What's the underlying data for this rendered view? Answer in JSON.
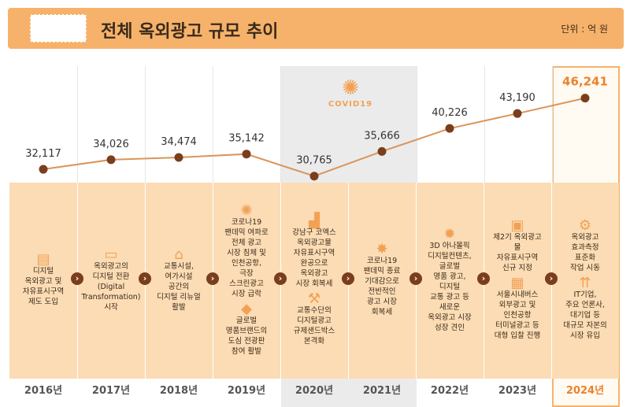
{
  "header": {
    "title": "전체 옥외광고 규모 추이",
    "unit": "단위 : 억 원"
  },
  "covid_label": "COVID19",
  "colors": {
    "accent": "#f6b26b",
    "line": "#d9955a",
    "point": "#7a3e1d",
    "highlight": "#e8832e"
  },
  "chart_data": {
    "type": "line",
    "title": "전체 옥외광고 규모 추이",
    "ylabel": "억 원",
    "categories": [
      "2016년",
      "2017년",
      "2018년",
      "2019년",
      "2020년",
      "2021년",
      "2022년",
      "2023년",
      "2024년"
    ],
    "values": [
      32117,
      34026,
      34474,
      35142,
      30765,
      35666,
      40226,
      43190,
      46241
    ],
    "value_labels": [
      "32,117",
      "34,026",
      "34,474",
      "35,142",
      "30,765",
      "35,666",
      "40,226",
      "43,190",
      "46,241"
    ],
    "ylim": [
      29000,
      48000
    ]
  },
  "descriptions": [
    [
      "디지털",
      "옥외광고 및",
      "자유표시구역",
      "제도 도입"
    ],
    [
      "옥외광고의",
      "디지털 전환",
      "(Digital",
      "Transformation)",
      "시작"
    ],
    [
      "교통시설,",
      "여가시설",
      "공간의",
      "디지털 리뉴얼",
      "활발"
    ],
    [
      "코로나19",
      "팬데믹 여파로",
      "전체 광고",
      "시장 침체 및",
      "인천공항,",
      "극장",
      "스크린광고",
      "시장 급락",
      "",
      "글로벌",
      "명품브랜드의",
      "도심 전광판",
      "참여 활발"
    ],
    [
      "강남구 코엑스",
      "옥외광고물",
      "자유표시구역",
      "완공으로",
      "옥외광고",
      "시장 회복세",
      "",
      "교통수단의",
      "디지털광고",
      "규제샌드박스",
      "본격화"
    ],
    [
      "코로나19",
      "팬데믹 종료",
      "기대감으로",
      "전반적인",
      "광고 시장",
      "회복세"
    ],
    [
      "3D 아나몰픽",
      "디지털컨텐츠,",
      "글로벌",
      "명품 광고,",
      "디지털",
      "교통 광고 등",
      "새로운",
      "옥외광고 시장",
      "성장 견인"
    ],
    [
      "제2기 옥외광고물",
      "자유표시구역",
      "신규 지정",
      "",
      "서울시내버스",
      "외부광고 및",
      "인천공항",
      "터미널광고 등",
      "대형 입찰 진행"
    ],
    [
      "옥외광고",
      "효과측정",
      "표준화",
      "작업 시동",
      "",
      "IT기업,",
      "주요 언론사,",
      "대기업 등",
      "대규모 자본의",
      "시장 유입"
    ]
  ],
  "icons": [
    "clipboard-icon",
    "devices-icon",
    "storefront-icon",
    "virus-icon",
    "growth-chart-icon",
    "sparkle-icon",
    "bulb-icon",
    "document-icon",
    "gear-icon"
  ],
  "second_icons": [
    "",
    "",
    "",
    "diamond-icon",
    "gavel-icon",
    "",
    "",
    "bus-icon",
    "money-growth-icon"
  ]
}
